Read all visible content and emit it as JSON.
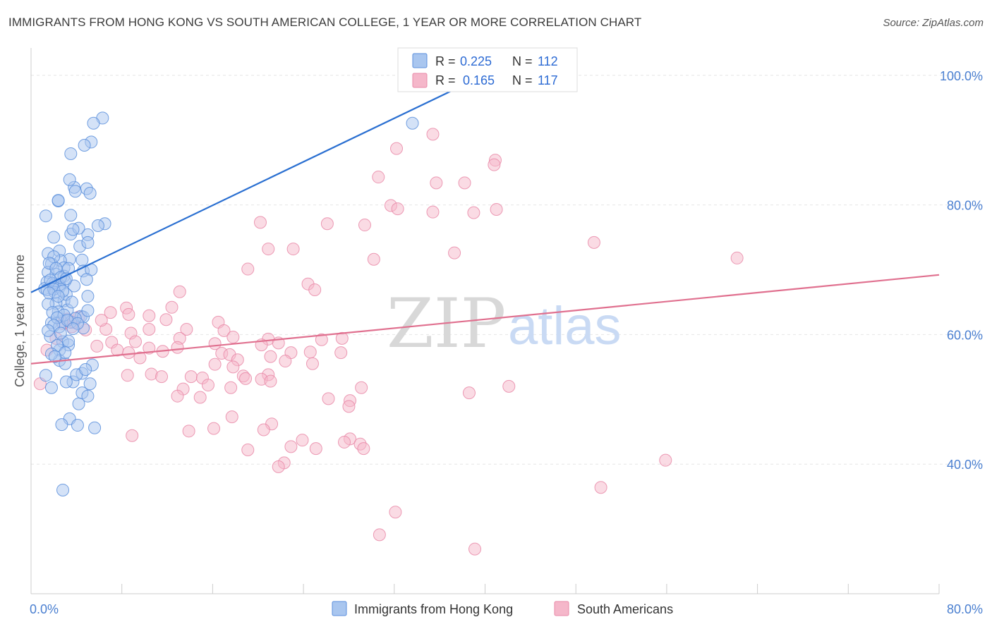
{
  "title": "IMMIGRANTS FROM HONG KONG VS SOUTH AMERICAN COLLEGE, 1 YEAR OR MORE CORRELATION CHART",
  "source": "Source: ZipAtlas.com",
  "watermark": {
    "zip": "ZIP",
    "atlas": "atlas"
  },
  "colors": {
    "blue_fill": "#a9c6ef",
    "blue_stroke": "#5b8fdc",
    "blue_line": "#2a6fd1",
    "pink_fill": "#f5b7ca",
    "pink_stroke": "#e98aa8",
    "pink_line": "#e0708f",
    "tick_text": "#4a7fd0",
    "grid": "#e6e6e6"
  },
  "legend_box": {
    "rows": [
      {
        "r_label": "R =",
        "r_value": "0.225",
        "n_label": "N =",
        "n_value": "112"
      },
      {
        "r_label": "R =",
        "r_value": "0.165",
        "n_label": "N =",
        "n_value": "117"
      }
    ]
  },
  "chart_data": {
    "type": "scatter",
    "title": "IMMIGRANTS FROM HONG KONG VS SOUTH AMERICAN COLLEGE, 1 YEAR OR MORE CORRELATION CHART",
    "xlabel": "",
    "ylabel": "College, 1 year or more",
    "xlim": [
      0,
      80
    ],
    "ylim": [
      20,
      104
    ],
    "x_tick_labels": [
      {
        "value": 0,
        "label": "0.0%"
      },
      {
        "value": 80,
        "label": "80.0%"
      }
    ],
    "y_tick_labels": [
      {
        "value": 40,
        "label": "40.0%"
      },
      {
        "value": 60,
        "label": "60.0%"
      },
      {
        "value": 80,
        "label": "80.0%"
      },
      {
        "value": 100,
        "label": "100.0%"
      }
    ],
    "legend": [
      "Immigrants from Hong Kong",
      "South Americans"
    ],
    "series": [
      {
        "name": "Immigrants from Hong Kong",
        "color": "#a9c6ef",
        "R": 0.225,
        "N": 112,
        "trend": {
          "x0": 0,
          "y0": 66.5,
          "x1": 40.5,
          "y1": 100.5
        },
        "points": [
          [
            6.3,
            93.4
          ],
          [
            5.3,
            89.7
          ],
          [
            4.7,
            89.2
          ],
          [
            3.5,
            87.9
          ],
          [
            4.9,
            82.5
          ],
          [
            3.8,
            82.7
          ],
          [
            3.9,
            82.1
          ],
          [
            3.4,
            83.9
          ],
          [
            2.4,
            80.6
          ],
          [
            1.3,
            78.3
          ],
          [
            2.4,
            80.7
          ],
          [
            3.5,
            78.4
          ],
          [
            5.2,
            81.8
          ],
          [
            3.5,
            75.5
          ],
          [
            5.0,
            75.4
          ],
          [
            2.5,
            72.9
          ],
          [
            1.5,
            72.5
          ],
          [
            2.0,
            75.0
          ],
          [
            3.4,
            71.6
          ],
          [
            2.6,
            71.4
          ],
          [
            1.8,
            70.9
          ],
          [
            2.9,
            70.3
          ],
          [
            1.5,
            69.6
          ],
          [
            2.2,
            69.3
          ],
          [
            2.9,
            69.0
          ],
          [
            3.0,
            68.2
          ],
          [
            1.4,
            68.1
          ],
          [
            2.1,
            67.8
          ],
          [
            2.5,
            67.6
          ],
          [
            3.8,
            67.5
          ],
          [
            2.5,
            67.3
          ],
          [
            1.2,
            67.1
          ],
          [
            1.4,
            66.9
          ],
          [
            2.9,
            65.2
          ],
          [
            2.2,
            64.8
          ],
          [
            1.5,
            64.7
          ],
          [
            2.7,
            62.0
          ],
          [
            1.8,
            61.8
          ],
          [
            3.5,
            61.9
          ],
          [
            4.4,
            62.8
          ],
          [
            4.6,
            62.7
          ],
          [
            3.9,
            62.5
          ],
          [
            2.5,
            61.2
          ],
          [
            4.6,
            61.0
          ],
          [
            2.8,
            58.9
          ],
          [
            3.3,
            58.4
          ],
          [
            2.5,
            57.6
          ],
          [
            2.5,
            56.0
          ],
          [
            5.4,
            55.3
          ],
          [
            4.5,
            54.0
          ],
          [
            1.3,
            53.7
          ],
          [
            3.7,
            52.7
          ],
          [
            3.1,
            52.7
          ],
          [
            4.5,
            51.0
          ],
          [
            5.0,
            50.5
          ],
          [
            3.4,
            47.0
          ],
          [
            2.7,
            46.1
          ],
          [
            4.1,
            46.0
          ],
          [
            5.6,
            45.6
          ],
          [
            2.8,
            36.0
          ],
          [
            5.5,
            92.6
          ],
          [
            6.5,
            77.1
          ],
          [
            5.9,
            76.8
          ],
          [
            4.2,
            76.4
          ],
          [
            3.7,
            76.2
          ],
          [
            4.3,
            73.6
          ],
          [
            5.0,
            74.2
          ],
          [
            4.5,
            71.5
          ],
          [
            3.3,
            70.2
          ],
          [
            4.6,
            69.8
          ],
          [
            5.3,
            70.0
          ],
          [
            4.9,
            68.5
          ],
          [
            1.9,
            67.9
          ],
          [
            2.1,
            66.5
          ],
          [
            3.1,
            66.2
          ],
          [
            5.0,
            65.9
          ],
          [
            3.2,
            63.8
          ],
          [
            2.4,
            63.5
          ],
          [
            5.0,
            63.7
          ],
          [
            1.7,
            59.7
          ],
          [
            3.3,
            59.0
          ],
          [
            2.3,
            58.3
          ],
          [
            1.8,
            57.0
          ],
          [
            3.0,
            55.5
          ],
          [
            4.0,
            53.8
          ],
          [
            5.2,
            52.4
          ],
          [
            4.2,
            49.3
          ],
          [
            33.6,
            92.6
          ],
          [
            2.0,
            72.0
          ],
          [
            1.6,
            71.0
          ],
          [
            2.2,
            70.2
          ],
          [
            2.6,
            68.8
          ],
          [
            3.1,
            68.6
          ],
          [
            1.7,
            68.4
          ],
          [
            2.0,
            67.0
          ],
          [
            2.8,
            66.7
          ],
          [
            1.6,
            66.4
          ],
          [
            2.4,
            65.9
          ],
          [
            3.6,
            65.0
          ],
          [
            1.9,
            63.4
          ],
          [
            2.9,
            63.0
          ],
          [
            2.3,
            62.6
          ],
          [
            3.2,
            62.2
          ],
          [
            4.1,
            61.7
          ],
          [
            2.0,
            61.4
          ],
          [
            3.7,
            60.9
          ],
          [
            1.5,
            60.6
          ],
          [
            2.6,
            60.2
          ],
          [
            3.0,
            57.2
          ],
          [
            2.1,
            56.6
          ],
          [
            4.8,
            54.6
          ],
          [
            1.8,
            51.8
          ]
        ]
      },
      {
        "name": "South Americans",
        "color": "#f5b7ca",
        "R": 0.165,
        "N": 117,
        "trend": {
          "x0": 0,
          "y0": 55.5,
          "x1": 80,
          "y1": 69.2
        },
        "points": [
          [
            35.4,
            90.9
          ],
          [
            32.2,
            88.7
          ],
          [
            40.9,
            86.9
          ],
          [
            40.8,
            86.2
          ],
          [
            30.6,
            84.3
          ],
          [
            35.7,
            83.4
          ],
          [
            38.2,
            83.4
          ],
          [
            31.7,
            79.9
          ],
          [
            32.3,
            79.4
          ],
          [
            35.4,
            78.9
          ],
          [
            41.0,
            79.3
          ],
          [
            39.0,
            78.8
          ],
          [
            20.2,
            77.3
          ],
          [
            26.1,
            77.1
          ],
          [
            29.4,
            76.9
          ],
          [
            49.6,
            74.2
          ],
          [
            20.9,
            73.2
          ],
          [
            23.1,
            73.2
          ],
          [
            37.3,
            72.6
          ],
          [
            30.2,
            71.6
          ],
          [
            62.2,
            71.8
          ],
          [
            19.1,
            70.1
          ],
          [
            24.4,
            67.8
          ],
          [
            25.0,
            66.9
          ],
          [
            13.1,
            66.6
          ],
          [
            12.4,
            64.2
          ],
          [
            8.4,
            64.1
          ],
          [
            7.0,
            63.4
          ],
          [
            8.6,
            63.1
          ],
          [
            10.4,
            62.9
          ],
          [
            11.9,
            62.3
          ],
          [
            16.5,
            61.9
          ],
          [
            3.6,
            61.2
          ],
          [
            3.8,
            61.9
          ],
          [
            4.8,
            60.7
          ],
          [
            6.6,
            60.8
          ],
          [
            10.4,
            60.8
          ],
          [
            13.7,
            60.8
          ],
          [
            17.0,
            60.6
          ],
          [
            8.8,
            60.2
          ],
          [
            17.8,
            59.6
          ],
          [
            13.1,
            59.4
          ],
          [
            20.9,
            59.3
          ],
          [
            25.6,
            59.2
          ],
          [
            27.4,
            59.4
          ],
          [
            7.1,
            58.8
          ],
          [
            9.2,
            58.9
          ],
          [
            21.8,
            58.7
          ],
          [
            16.2,
            58.6
          ],
          [
            5.8,
            58.2
          ],
          [
            20.3,
            58.4
          ],
          [
            12.9,
            58.0
          ],
          [
            10.4,
            57.9
          ],
          [
            7.6,
            57.6
          ],
          [
            8.6,
            57.2
          ],
          [
            11.6,
            57.4
          ],
          [
            16.8,
            57.1
          ],
          [
            22.9,
            57.2
          ],
          [
            24.6,
            57.3
          ],
          [
            27.3,
            57.2
          ],
          [
            17.5,
            56.9
          ],
          [
            21.1,
            56.6
          ],
          [
            9.6,
            56.4
          ],
          [
            18.2,
            56.1
          ],
          [
            22.4,
            55.9
          ],
          [
            24.8,
            55.5
          ],
          [
            16.2,
            55.4
          ],
          [
            17.8,
            55.0
          ],
          [
            20.9,
            53.8
          ],
          [
            18.7,
            53.6
          ],
          [
            8.5,
            53.7
          ],
          [
            10.6,
            53.9
          ],
          [
            11.5,
            53.5
          ],
          [
            14.1,
            53.5
          ],
          [
            15.1,
            53.3
          ],
          [
            20.3,
            53.1
          ],
          [
            18.9,
            53.2
          ],
          [
            21.1,
            52.8
          ],
          [
            15.6,
            52.2
          ],
          [
            13.4,
            51.6
          ],
          [
            17.6,
            51.8
          ],
          [
            29.1,
            51.8
          ],
          [
            42.1,
            52.0
          ],
          [
            38.6,
            51.0
          ],
          [
            12.9,
            50.5
          ],
          [
            14.9,
            50.3
          ],
          [
            26.2,
            50.1
          ],
          [
            28.1,
            49.8
          ],
          [
            28.0,
            48.9
          ],
          [
            17.7,
            47.3
          ],
          [
            21.2,
            46.2
          ],
          [
            20.5,
            45.3
          ],
          [
            13.9,
            45.1
          ],
          [
            16.1,
            45.5
          ],
          [
            8.9,
            44.4
          ],
          [
            28.1,
            43.9
          ],
          [
            27.6,
            43.4
          ],
          [
            29.0,
            43.1
          ],
          [
            23.9,
            43.7
          ],
          [
            22.9,
            42.7
          ],
          [
            25.1,
            42.4
          ],
          [
            19.1,
            42.2
          ],
          [
            29.3,
            42.4
          ],
          [
            55.9,
            40.6
          ],
          [
            22.3,
            40.2
          ],
          [
            21.8,
            39.6
          ],
          [
            50.2,
            36.4
          ],
          [
            32.1,
            32.6
          ],
          [
            30.7,
            29.1
          ],
          [
            39.1,
            26.9
          ],
          [
            0.8,
            52.4
          ],
          [
            1.4,
            57.6
          ],
          [
            2.2,
            59.4
          ],
          [
            2.8,
            61.7
          ],
          [
            3.2,
            62.4
          ],
          [
            4.2,
            62.7
          ],
          [
            6.2,
            62.2
          ]
        ]
      }
    ]
  }
}
